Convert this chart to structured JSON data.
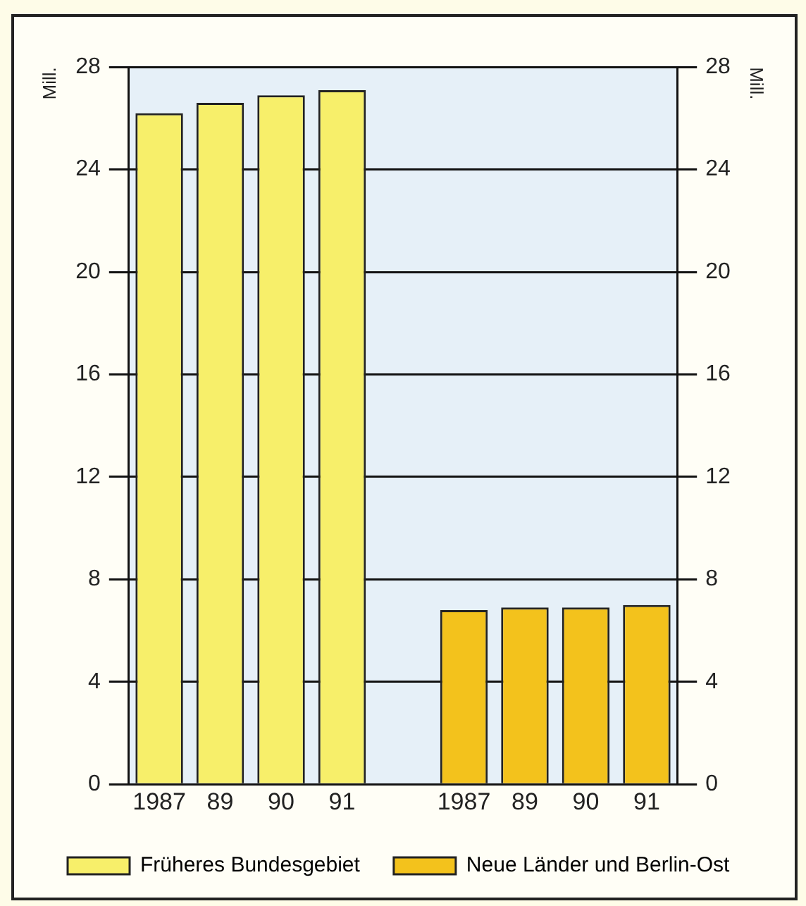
{
  "chart_data": {
    "type": "bar",
    "ylabel": "Mill.",
    "y2label": "Mill.",
    "categories": [
      "1987",
      "89",
      "90",
      "91",
      null,
      "1987",
      "89",
      "90",
      "91"
    ],
    "series": [
      {
        "name": "Früheres Bundesgebiet",
        "color": "#f7ef6a",
        "values": [
          26.2,
          26.6,
          26.9,
          27.1,
          null,
          null,
          null,
          null,
          null
        ]
      },
      {
        "name": "Neue Länder und Berlin-Ost",
        "color": "#f3c21c",
        "values": [
          null,
          null,
          null,
          null,
          null,
          6.8,
          6.9,
          6.9,
          7.0
        ]
      }
    ],
    "ylim": [
      0,
      28
    ],
    "yticks": [
      0,
      4,
      8,
      12,
      16,
      20,
      24,
      28
    ],
    "y2lim": [
      0,
      28
    ],
    "y2ticks": [
      0,
      4,
      8,
      12,
      16,
      20,
      24,
      28
    ],
    "grid": "y",
    "legend": "bottom"
  }
}
